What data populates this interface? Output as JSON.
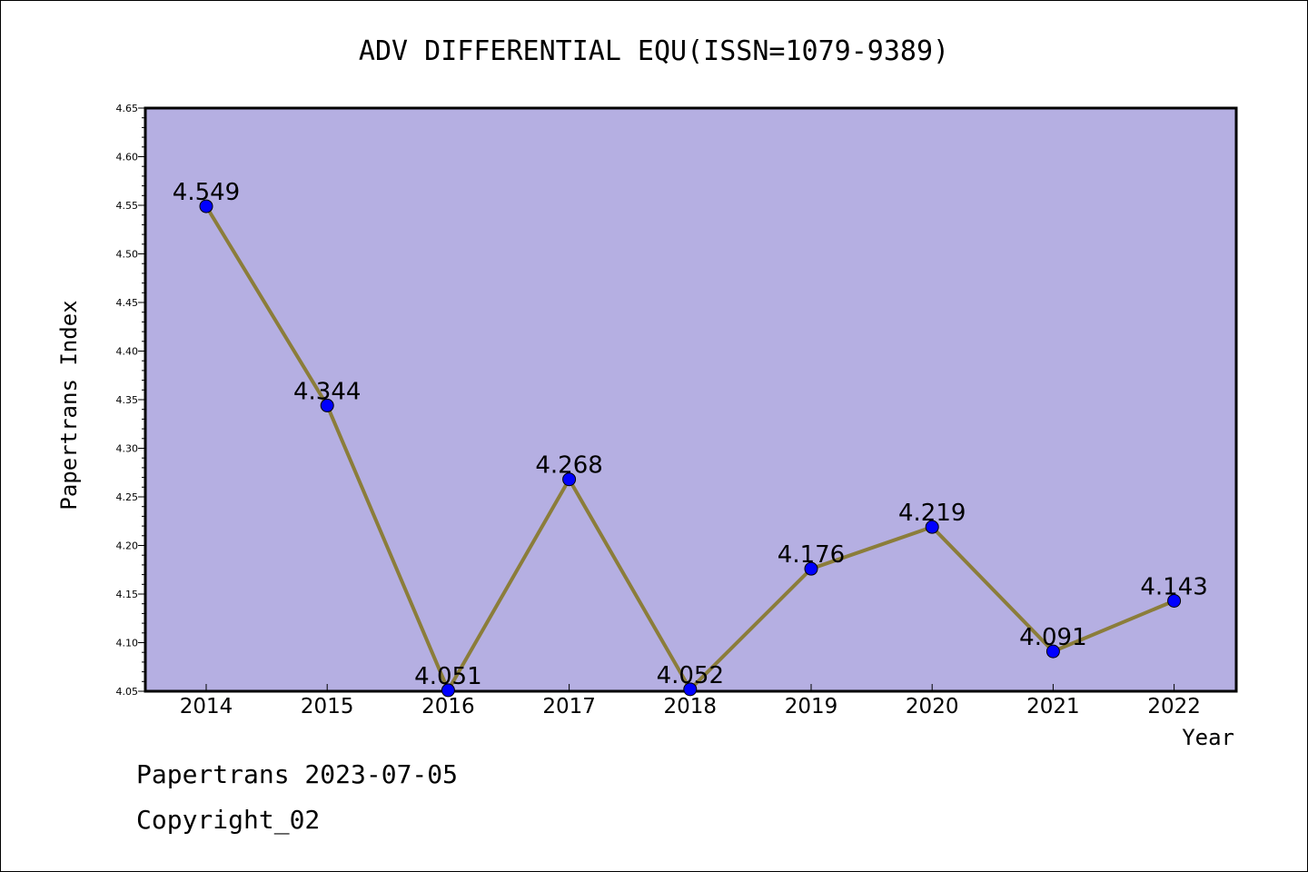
{
  "chart_data": {
    "type": "line",
    "title": "ADV DIFFERENTIAL EQU(ISSN=1079-9389)",
    "xlabel": "Year",
    "ylabel": "Papertrans Index",
    "categories": [
      "2014",
      "2015",
      "2016",
      "2017",
      "2018",
      "2019",
      "2020",
      "2021",
      "2022"
    ],
    "values": [
      4.549,
      4.344,
      4.051,
      4.268,
      4.052,
      4.176,
      4.219,
      4.091,
      4.143
    ],
    "value_labels": [
      "4.549",
      "4.344",
      "4.051",
      "4.268",
      "4.052",
      "4.176",
      "4.219",
      "4.091",
      "4.143"
    ],
    "ylim": [
      4.05,
      4.65
    ],
    "yticks": [
      "4.05",
      "4.10",
      "4.15",
      "4.20",
      "4.25",
      "4.30",
      "4.35",
      "4.40",
      "4.45",
      "4.50",
      "4.55",
      "4.60",
      "4.65"
    ],
    "grid": false,
    "colors": {
      "plot_background": "#b5afe2",
      "line": "#8b7d3a",
      "marker": "#0000ff"
    }
  },
  "footer": {
    "line1": "Papertrans 2023-07-05",
    "line2": "Copyright_02"
  }
}
